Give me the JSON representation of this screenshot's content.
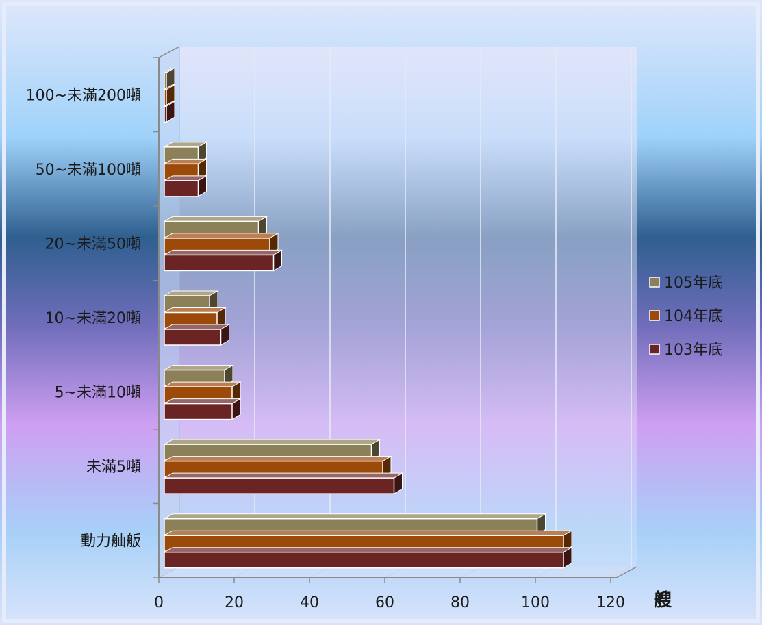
{
  "chart_data": {
    "type": "bar",
    "orientation": "horizontal",
    "categories": [
      "動力舢舨",
      "未滿5噸",
      "5~未滿10噸",
      "10~未滿20噸",
      "20~未滿50噸",
      "50~未滿100噸",
      "100~未滿200噸"
    ],
    "series": [
      {
        "name": "103年底",
        "color": "#6b2424",
        "values": [
          106,
          61,
          18,
          15,
          29,
          9,
          0.3
        ]
      },
      {
        "name": "104年底",
        "color": "#9c4a0a",
        "values": [
          106,
          58,
          18,
          14,
          28,
          9,
          0.3
        ]
      },
      {
        "name": "105年底",
        "color": "#8c8058",
        "values": [
          99,
          55,
          16,
          12,
          25,
          9,
          0.3
        ]
      }
    ],
    "x_unit_label": "艘",
    "xlim": [
      0,
      120
    ],
    "xticks": [
      0,
      20,
      40,
      60,
      80,
      100,
      120
    ],
    "legend_position": "right",
    "grid": true
  }
}
